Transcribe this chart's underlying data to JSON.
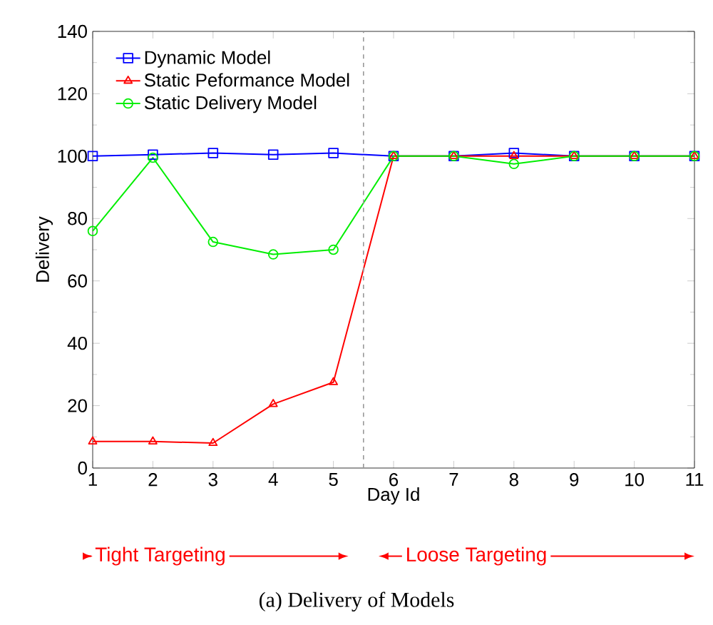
{
  "chart_data": {
    "type": "line",
    "xlabel": "Day Id",
    "ylabel": "Delivery",
    "x": [
      1,
      2,
      3,
      4,
      5,
      6,
      7,
      8,
      9,
      10,
      11
    ],
    "series": [
      {
        "name": "Dynamic Model",
        "color": "#0000ff",
        "marker": "square",
        "values": [
          100,
          100.5,
          101,
          100.5,
          101,
          100,
          100,
          101,
          100,
          100,
          100
        ]
      },
      {
        "name": "Static Peformance Model",
        "color": "#ff0000",
        "marker": "triangle",
        "values": [
          8.5,
          8.5,
          8,
          20.5,
          27.5,
          100,
          100,
          100,
          100,
          100,
          100
        ]
      },
      {
        "name": "Static Delivery Model",
        "color": "#00ee00",
        "marker": "circle",
        "values": [
          76,
          99.5,
          72.5,
          68.5,
          70,
          100,
          100,
          97.5,
          100,
          100,
          100
        ]
      }
    ],
    "xlim": [
      1,
      11
    ],
    "ylim": [
      0,
      140
    ],
    "xticks": [
      1,
      2,
      3,
      4,
      5,
      6,
      7,
      8,
      9,
      10,
      11
    ],
    "yticks": [
      0,
      20,
      40,
      60,
      80,
      100,
      120,
      140
    ],
    "grid": false,
    "legend": "top left",
    "line_style": "solid",
    "ref_lines": [
      {
        "axis": "x",
        "value": 5.5,
        "color": "#999999",
        "line_style": "dashed"
      }
    ],
    "annotations": [
      "Tight Targeting",
      "Loose Targeting",
      "(a) Delivery of Models"
    ]
  }
}
